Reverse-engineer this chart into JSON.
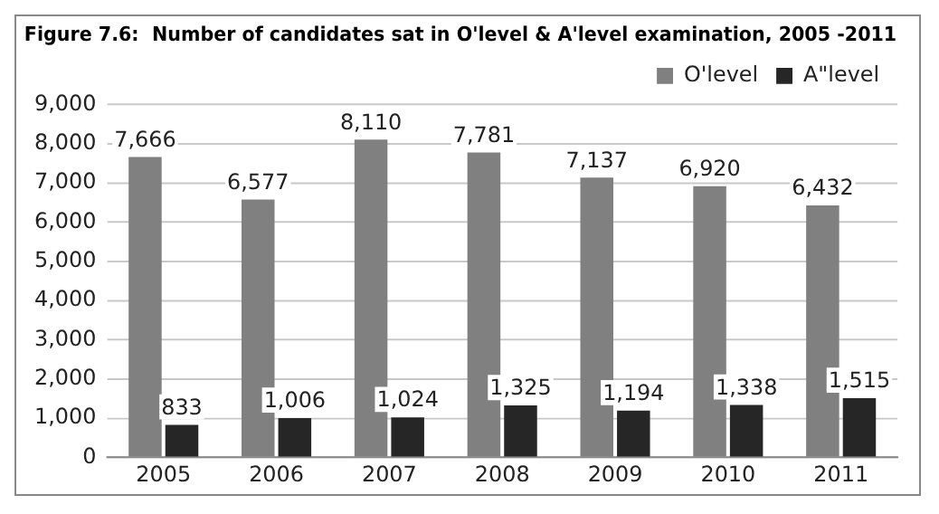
{
  "chart_data": {
    "type": "bar",
    "title": "Figure 7.6:  Number of candidates sat in O'level & A'level examination, 2005 -2011",
    "categories": [
      "2005",
      "2006",
      "2007",
      "2008",
      "2009",
      "2010",
      "2011"
    ],
    "series": [
      {
        "name": "O'level",
        "color": "#808080",
        "values": [
          7666,
          6577,
          8110,
          7781,
          7137,
          6920,
          6432
        ],
        "value_labels": [
          "7,666",
          "6,577",
          "8,110",
          "7,781",
          "7,137",
          "6,920",
          "6,432"
        ]
      },
      {
        "name": "A\"level",
        "color": "#262626",
        "values": [
          833,
          1006,
          1024,
          1325,
          1194,
          1338,
          1515
        ],
        "value_labels": [
          "833",
          "1,006",
          "1,024",
          "1,325",
          "1,194",
          "1,338",
          "1,515"
        ]
      }
    ],
    "ylim": [
      0,
      9000
    ],
    "yticks": [
      0,
      {
        "value": 1000,
        "label": "1,000"
      },
      {
        "value": 2000,
        "label": "2,000"
      },
      {
        "value": 3000,
        "label": "3,000"
      },
      {
        "value": 4000,
        "label": "4,000"
      },
      {
        "value": 5000,
        "label": "5,000"
      },
      {
        "value": 6000,
        "label": "6,000"
      },
      {
        "value": 7000,
        "label": "7,000"
      },
      {
        "value": 8000,
        "label": "8,000"
      },
      {
        "value": 9000,
        "label": "9,000"
      }
    ],
    "grid": "y",
    "legend": "top right"
  }
}
